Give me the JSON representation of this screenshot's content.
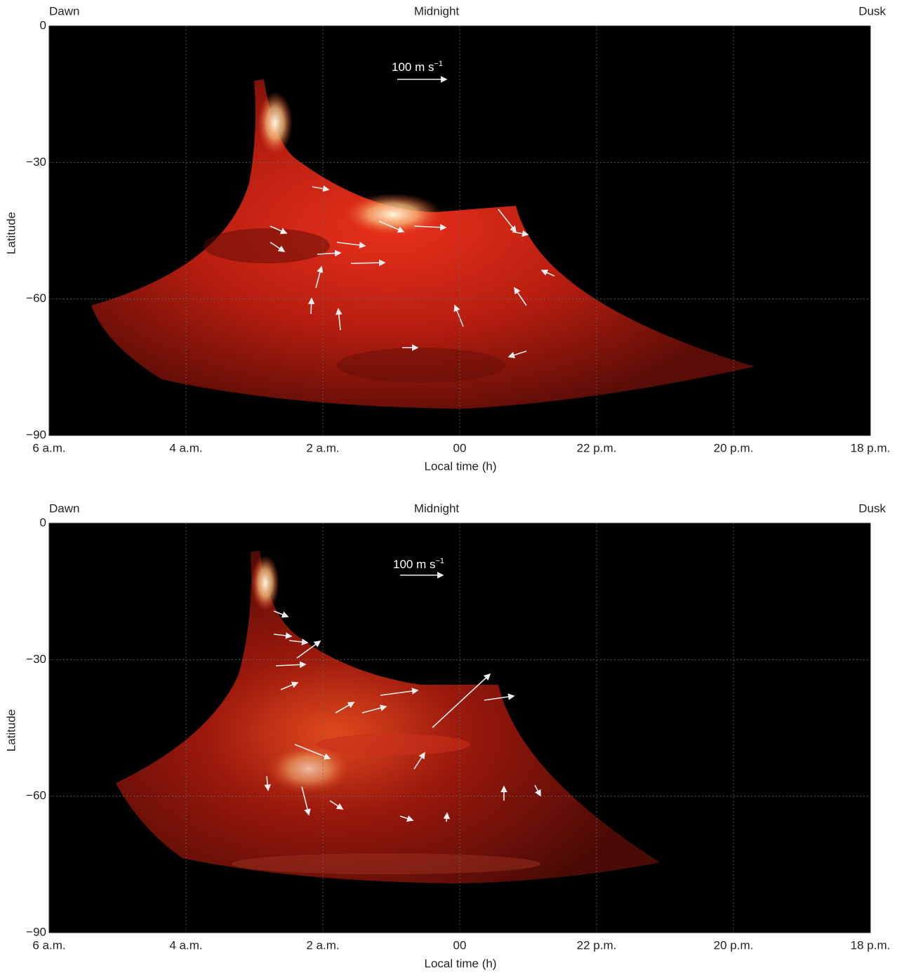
{
  "chart_data": [
    {
      "type": "map",
      "dawn_label": "Dawn",
      "midnight_label": "Midnight",
      "dusk_label": "Dusk",
      "xlabel": "Local time (h)",
      "ylabel": "Latitude",
      "scale_label": "100 m s",
      "scale_exponent": "−1",
      "xlim": [
        6,
        -6
      ],
      "ylim": [
        -90,
        0
      ],
      "xticks": [
        {
          "value": 6,
          "label": "6 a.m."
        },
        {
          "value": 4,
          "label": "4 a.m."
        },
        {
          "value": 2,
          "label": "2 a.m."
        },
        {
          "value": 0,
          "label": "00"
        },
        {
          "value": -2,
          "label": "22 p.m."
        },
        {
          "value": -4,
          "label": "20 p.m."
        },
        {
          "value": -6,
          "label": "18 p.m."
        }
      ],
      "yticks": [
        0,
        {
          "value": -30,
          "label": "−30"
        },
        {
          "value": -60,
          "label": "−60"
        },
        {
          "value": -90,
          "label": "−90"
        }
      ],
      "grid": true
    },
    {
      "type": "map",
      "dawn_label": "Dawn",
      "midnight_label": "Midnight",
      "dusk_label": "Dusk",
      "xlabel": "Local time (h)",
      "ylabel": "Latitude",
      "scale_label": "100 m s",
      "scale_exponent": "−1",
      "xlim": [
        6,
        -6
      ],
      "ylim": [
        -90,
        0
      ],
      "xticks": [
        {
          "value": 6,
          "label": "6 a.m."
        },
        {
          "value": 4,
          "label": "4 a.m."
        },
        {
          "value": 2,
          "label": "2 a.m."
        },
        {
          "value": 0,
          "label": "00"
        },
        {
          "value": -2,
          "label": "22 p.m."
        },
        {
          "value": -4,
          "label": "20 p.m."
        },
        {
          "value": -6,
          "label": "18 p.m."
        }
      ],
      "yticks": [
        0,
        {
          "value": -30,
          "label": "−30"
        },
        {
          "value": -60,
          "label": "−60"
        },
        {
          "value": -90,
          "label": "−90"
        }
      ],
      "grid": true
    }
  ]
}
